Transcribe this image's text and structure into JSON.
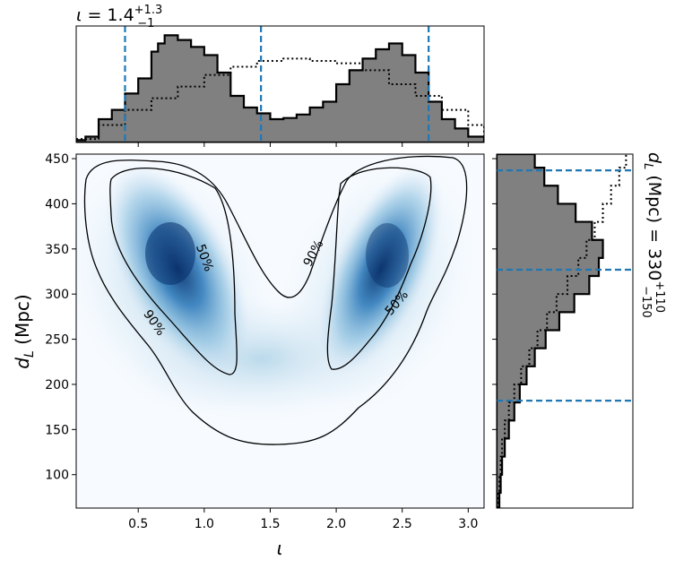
{
  "chart_data": [
    {
      "type": "heatmap",
      "panel": "joint",
      "xlabel": "ι",
      "ylabel": "d_L (Mpc)",
      "xlim": [
        0.03,
        3.12
      ],
      "ylim": [
        63,
        455
      ],
      "xticks": [
        "0.5",
        "1.0",
        "1.5",
        "2.0",
        "2.5",
        "3.0"
      ],
      "yticks": [
        "100",
        "150",
        "200",
        "250",
        "300",
        "350",
        "400",
        "450"
      ],
      "colormap": "Blues",
      "density_peaks": [
        {
          "x": 0.75,
          "y": 345
        },
        {
          "x": 2.35,
          "y": 350
        }
      ],
      "contour_levels": [
        "50%",
        "90%"
      ],
      "contour_labels": [
        {
          "text": "50%",
          "x": 1.0,
          "y": 340
        },
        {
          "text": "90%",
          "x": 1.83,
          "y": 345
        },
        {
          "text": "50%",
          "x": 2.46,
          "y": 290
        },
        {
          "text": "90%",
          "x": 0.62,
          "y": 268
        }
      ]
    },
    {
      "type": "line",
      "panel": "x-marginal",
      "title_symbol": "ι",
      "title_eq": " = 1.4",
      "title_sup": "+1.3",
      "title_sub": "−1",
      "quantile_lines": [
        0.4,
        1.43,
        2.7
      ],
      "series": [
        {
          "style": "filled-step",
          "color": "#808080",
          "x": [
            0.03,
            0.1,
            0.2,
            0.3,
            0.4,
            0.5,
            0.6,
            0.65,
            0.7,
            0.8,
            0.9,
            1.0,
            1.1,
            1.2,
            1.3,
            1.4,
            1.5,
            1.6,
            1.7,
            1.8,
            1.9,
            2.0,
            2.1,
            2.2,
            2.3,
            2.4,
            2.5,
            2.6,
            2.7,
            2.8,
            2.9,
            3.0,
            3.12
          ],
          "values": [
            0.02,
            0.05,
            0.2,
            0.28,
            0.42,
            0.55,
            0.78,
            0.85,
            0.92,
            0.88,
            0.82,
            0.75,
            0.6,
            0.4,
            0.3,
            0.25,
            0.2,
            0.21,
            0.24,
            0.3,
            0.35,
            0.5,
            0.62,
            0.72,
            0.8,
            0.85,
            0.75,
            0.6,
            0.35,
            0.2,
            0.12,
            0.05,
            0.02
          ]
        },
        {
          "style": "dotted-step",
          "color": "#000000",
          "x": [
            0.03,
            0.2,
            0.4,
            0.6,
            0.8,
            1.0,
            1.2,
            1.4,
            1.6,
            1.8,
            2.0,
            2.2,
            2.4,
            2.6,
            2.8,
            3.0,
            3.12
          ],
          "values": [
            0.03,
            0.15,
            0.28,
            0.38,
            0.48,
            0.58,
            0.65,
            0.7,
            0.72,
            0.7,
            0.68,
            0.62,
            0.5,
            0.4,
            0.28,
            0.15,
            0.06
          ]
        }
      ]
    },
    {
      "type": "line",
      "panel": "y-marginal",
      "label_pre": "d",
      "label_sub": "L",
      "label_eq": " (Mpc) = 330",
      "label_sup": "+110",
      "label_low": "−150",
      "quantile_lines": [
        182,
        327,
        437
      ],
      "series": [
        {
          "style": "filled-step",
          "color": "#808080",
          "y": [
            63,
            80,
            100,
            120,
            140,
            160,
            180,
            200,
            220,
            240,
            260,
            280,
            300,
            320,
            340,
            360,
            380,
            400,
            420,
            440,
            455
          ],
          "values": [
            0.02,
            0.03,
            0.04,
            0.06,
            0.09,
            0.13,
            0.17,
            0.22,
            0.28,
            0.36,
            0.46,
            0.57,
            0.68,
            0.75,
            0.78,
            0.7,
            0.58,
            0.45,
            0.35,
            0.28,
            0.2
          ]
        },
        {
          "style": "dotted-step",
          "color": "#000000",
          "y": [
            63,
            80,
            100,
            120,
            140,
            160,
            180,
            200,
            220,
            240,
            260,
            280,
            300,
            320,
            340,
            360,
            380,
            400,
            420,
            440,
            455
          ],
          "values": [
            0.01,
            0.02,
            0.03,
            0.04,
            0.06,
            0.09,
            0.13,
            0.18,
            0.24,
            0.3,
            0.37,
            0.44,
            0.52,
            0.6,
            0.66,
            0.72,
            0.78,
            0.84,
            0.9,
            0.95,
            0.95
          ]
        }
      ]
    }
  ]
}
